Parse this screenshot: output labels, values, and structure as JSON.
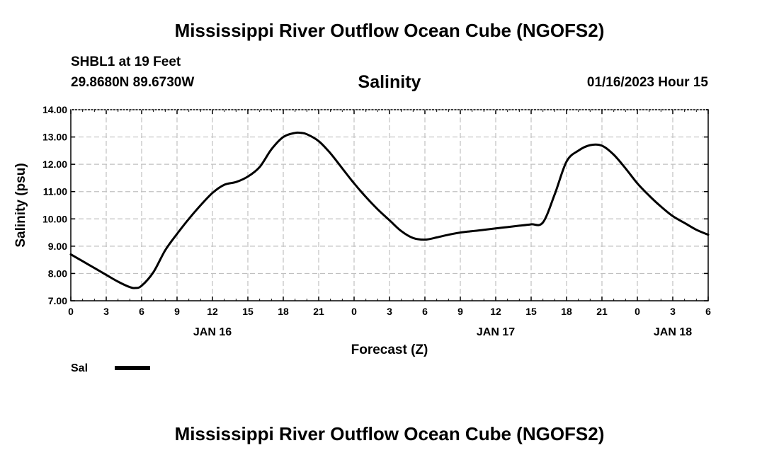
{
  "header": {
    "title": "Mississippi River Outflow Ocean Cube (NGOFS2)",
    "station": "SHBL1 at 19 Feet",
    "coords": "29.8680N  89.6730W",
    "datetime": "01/16/2023 Hour 15"
  },
  "footer": {
    "title": "Mississippi River Outflow Ocean Cube (NGOFS2)"
  },
  "colors": {
    "line": "#000000",
    "grid": "#c0c0c0"
  },
  "chart_data": {
    "type": "line",
    "title": "Salinity",
    "xlabel": "Forecast (Z)",
    "ylabel": "Salinity (psu)",
    "xlim": [
      0,
      54
    ],
    "ylim": [
      7.0,
      14.0
    ],
    "grid": true,
    "x_tick_values": [
      0,
      3,
      6,
      9,
      12,
      15,
      18,
      21,
      24,
      27,
      30,
      33,
      36,
      39,
      42,
      45,
      48,
      51,
      54
    ],
    "x_tick_labels": [
      "0",
      "3",
      "6",
      "9",
      "12",
      "15",
      "18",
      "21",
      "0",
      "3",
      "6",
      "9",
      "12",
      "15",
      "18",
      "21",
      "0",
      "3",
      "6"
    ],
    "y_ticks": [
      7.0,
      8.0,
      9.0,
      10.0,
      11.0,
      12.0,
      13.0,
      14.0
    ],
    "y_tick_labels": [
      "7.00",
      "8.00",
      "9.00",
      "10.00",
      "11.00",
      "12.00",
      "13.00",
      "14.00"
    ],
    "date_labels": [
      {
        "x": 12,
        "label": "JAN 16"
      },
      {
        "x": 36,
        "label": "JAN 17"
      },
      {
        "x": 51,
        "label": "JAN 18"
      }
    ],
    "legend": [
      {
        "name": "Sal"
      }
    ],
    "series": [
      {
        "name": "Sal",
        "x": [
          0,
          1,
          2,
          3,
          4,
          5,
          5.5,
          6,
          7,
          8,
          9,
          10,
          11,
          12,
          13,
          14,
          15,
          16,
          17,
          18,
          19,
          19.5,
          20,
          21,
          22,
          23,
          24,
          25,
          26,
          27,
          28,
          29,
          30,
          31,
          32,
          33,
          34,
          35,
          36,
          37,
          38,
          39,
          40,
          41,
          42,
          43,
          44,
          45,
          46,
          47,
          48,
          49,
          50,
          51,
          52,
          53,
          54
        ],
        "y": [
          8.7,
          8.45,
          8.2,
          7.95,
          7.7,
          7.5,
          7.47,
          7.55,
          8.05,
          8.85,
          9.45,
          10.0,
          10.5,
          10.95,
          11.25,
          11.35,
          11.55,
          11.9,
          12.55,
          13.0,
          13.15,
          13.15,
          13.1,
          12.85,
          12.4,
          11.85,
          11.3,
          10.8,
          10.35,
          9.95,
          9.55,
          9.3,
          9.24,
          9.32,
          9.42,
          9.5,
          9.55,
          9.6,
          9.65,
          9.7,
          9.75,
          9.8,
          9.87,
          10.9,
          12.1,
          12.5,
          12.7,
          12.68,
          12.35,
          11.85,
          11.3,
          10.85,
          10.45,
          10.1,
          9.85,
          9.6,
          9.42
        ]
      }
    ]
  }
}
